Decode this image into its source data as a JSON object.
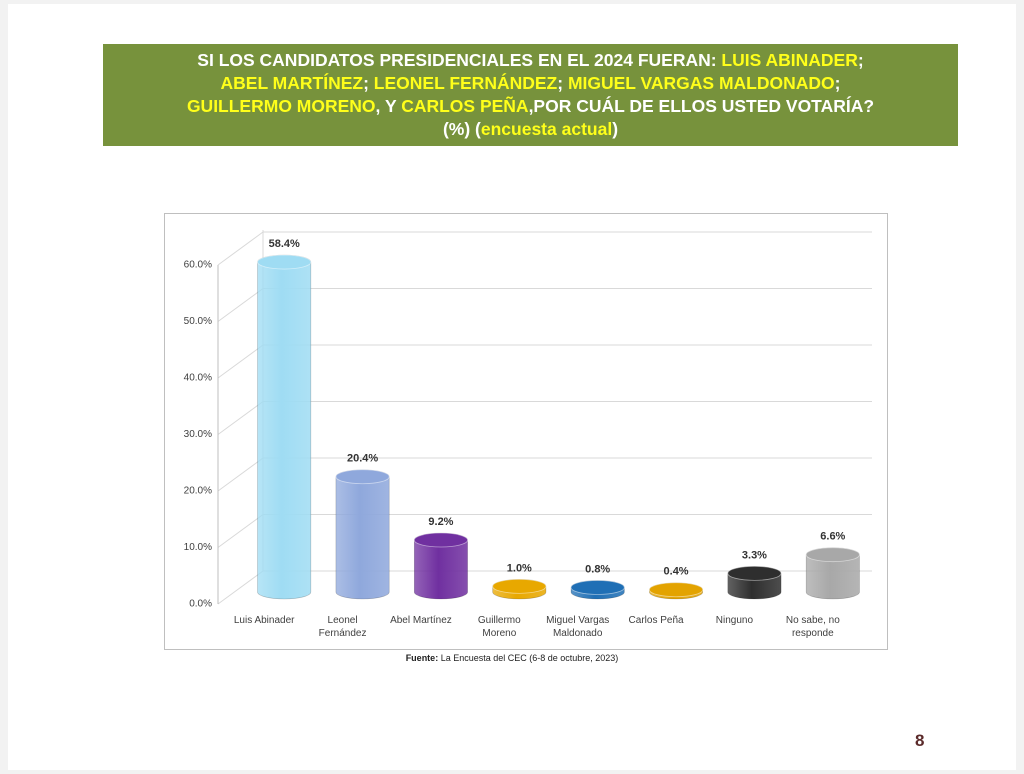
{
  "title_segments": [
    {
      "text": "SI LOS CANDIDATOS PRESIDENCIALES EN EL 2024 FUERAN: ",
      "highlight": false
    },
    {
      "text": "LUIS ABINADER",
      "highlight": true
    },
    {
      "text": ";\n",
      "highlight": false
    },
    {
      "text": "ABEL MARTÍNEZ",
      "highlight": true
    },
    {
      "text": "; ",
      "highlight": false
    },
    {
      "text": "LEONEL FERNÁNDEZ",
      "highlight": true
    },
    {
      "text": "; ",
      "highlight": false
    },
    {
      "text": "MIGUEL VARGAS MALDONADO",
      "highlight": true
    },
    {
      "text": ";\n",
      "highlight": false
    },
    {
      "text": "GUILLERMO MORENO",
      "highlight": true
    },
    {
      "text": ", Y ",
      "highlight": false
    },
    {
      "text": "CARLOS PEÑA",
      "highlight": true
    },
    {
      "text": ",POR CUÁL DE ELLOS USTED VOTARÍA?\n(%) (",
      "highlight": false
    },
    {
      "text": "encuesta actual",
      "highlight": true
    },
    {
      "text": ")",
      "highlight": false
    }
  ],
  "chart_data": {
    "type": "bar",
    "categories": [
      "Luis Abinader",
      "Leonel\nFernández",
      "Abel Martínez",
      "Guillermo\nMoreno",
      "Miguel Vargas\nMaldonado",
      "Carlos Peña",
      "Ninguno",
      "No sabe, no\nresponde"
    ],
    "values": [
      58.4,
      20.4,
      9.2,
      1.0,
      0.8,
      0.4,
      3.3,
      6.6
    ],
    "value_labels": [
      "58.4%",
      "20.4%",
      "9.2%",
      "1.0%",
      "0.8%",
      "0.4%",
      "3.3%",
      "6.6%"
    ],
    "colors": [
      "#9fdcf3",
      "#8fa8dc",
      "#7030a0",
      "#e8a800",
      "#1f6fb5",
      "#e3a300",
      "#2e2e2e",
      "#a8a8a8"
    ],
    "ylim": [
      0,
      60
    ],
    "yticks": [
      {
        "value": 0,
        "label": "0.0%"
      },
      {
        "value": 10,
        "label": "10.0%"
      },
      {
        "value": 20,
        "label": "20.0%"
      },
      {
        "value": 30,
        "label": "30.0%"
      },
      {
        "value": 40,
        "label": "40.0%"
      },
      {
        "value": 50,
        "label": "50.0%"
      },
      {
        "value": 60,
        "label": "60.0%"
      }
    ],
    "grid": true
  },
  "source": {
    "label": "Fuente:",
    "text": " La Encuesta del CEC (6-8 de octubre, 2023)"
  },
  "page_number": "8"
}
